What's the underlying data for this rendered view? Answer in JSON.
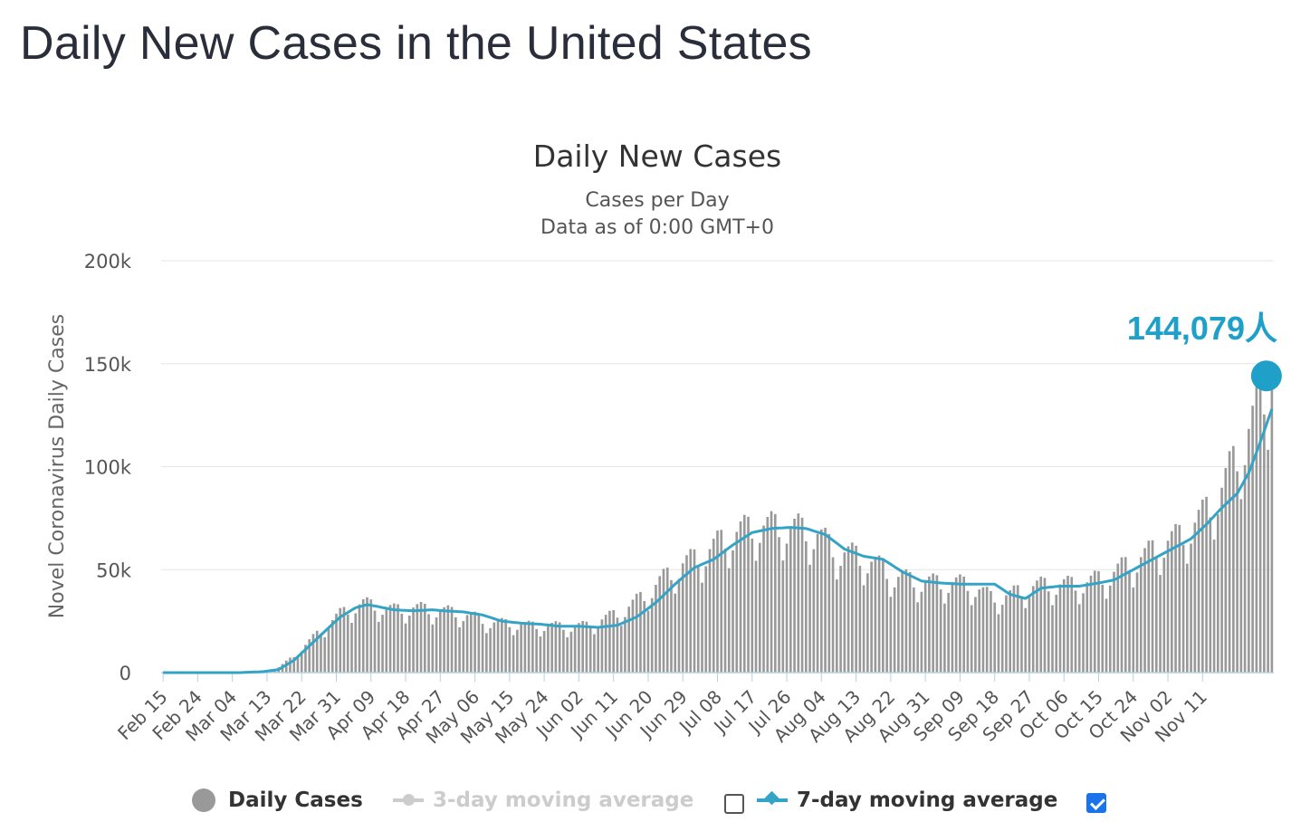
{
  "page": {
    "title": "Daily New Cases in the United States"
  },
  "legend": {
    "daily_cases": {
      "label": "Daily Cases",
      "color": "#999999"
    },
    "ma3": {
      "label": "3-day moving average",
      "color": "#cccccc",
      "checked": false
    },
    "ma7": {
      "label": "7-day moving average",
      "color": "#33a3c6",
      "checked": true
    }
  },
  "chart_data": {
    "type": "bar",
    "title": "Daily New Cases",
    "subtitle": [
      "Cases per Day",
      "Data as of 0:00 GMT+0"
    ],
    "ylabel": "Novel Coronavirus Daily Cases",
    "xlabel": "",
    "ylim": [
      0,
      200000
    ],
    "yticks": [
      0,
      50000,
      100000,
      150000,
      200000
    ],
    "ytick_labels": [
      "0",
      "50k",
      "100k",
      "150k",
      "200k"
    ],
    "start_date": "2020-02-15",
    "x_tick_labels": [
      "Feb 15",
      "Feb 24",
      "Mar 04",
      "Mar 13",
      "Mar 22",
      "Mar 31",
      "Apr 09",
      "Apr 18",
      "Apr 27",
      "May 06",
      "May 15",
      "May 24",
      "Jun 02",
      "Jun 11",
      "Jun 20",
      "Jun 29",
      "Jul 08",
      "Jul 17",
      "Jul 26",
      "Aug 04",
      "Aug 13",
      "Aug 22",
      "Aug 31",
      "Sep 09",
      "Sep 18",
      "Sep 27",
      "Oct 06",
      "Oct 15",
      "Oct 24",
      "Nov 02",
      "Nov 11"
    ],
    "grid": true,
    "legend_position": "bottom",
    "series": [
      {
        "name": "Daily Cases",
        "type": "bar",
        "color": "#999999",
        "anchors": [
          [
            0,
            0
          ],
          [
            20,
            0
          ],
          [
            26,
            600
          ],
          [
            30,
            2500
          ],
          [
            34,
            8000
          ],
          [
            38,
            15000
          ],
          [
            42,
            22000
          ],
          [
            46,
            28000
          ],
          [
            50,
            32000
          ],
          [
            52,
            33000
          ],
          [
            55,
            32000
          ],
          [
            60,
            30000
          ],
          [
            65,
            31000
          ],
          [
            70,
            30000
          ],
          [
            75,
            29000
          ],
          [
            80,
            27000
          ],
          [
            85,
            24000
          ],
          [
            90,
            23500
          ],
          [
            95,
            22500
          ],
          [
            100,
            22500
          ],
          [
            105,
            22000
          ],
          [
            110,
            22500
          ],
          [
            115,
            26000
          ],
          [
            120,
            30000
          ],
          [
            125,
            37000
          ],
          [
            130,
            45000
          ],
          [
            135,
            52000
          ],
          [
            140,
            56000
          ],
          [
            145,
            63000
          ],
          [
            150,
            68000
          ],
          [
            155,
            70000
          ],
          [
            160,
            70000
          ],
          [
            165,
            69000
          ],
          [
            170,
            66000
          ],
          [
            175,
            58000
          ],
          [
            180,
            56000
          ],
          [
            185,
            52000
          ],
          [
            190,
            46000
          ],
          [
            195,
            44000
          ],
          [
            200,
            43000
          ],
          [
            205,
            43000
          ],
          [
            210,
            42000
          ],
          [
            215,
            36000
          ],
          [
            220,
            37000
          ],
          [
            225,
            41000
          ],
          [
            230,
            42000
          ],
          [
            235,
            42000
          ],
          [
            240,
            43000
          ],
          [
            245,
            46000
          ],
          [
            250,
            51000
          ],
          [
            255,
            56000
          ],
          [
            260,
            62000
          ],
          [
            265,
            66000
          ],
          [
            270,
            75000
          ],
          [
            275,
            88000
          ],
          [
            280,
            108000
          ],
          [
            285,
            128000
          ],
          [
            288,
            144079
          ]
        ]
      },
      {
        "name": "7-day moving average",
        "type": "line",
        "color": "#33a3c6",
        "anchors": [
          [
            0,
            0
          ],
          [
            20,
            0
          ],
          [
            26,
            500
          ],
          [
            30,
            1500
          ],
          [
            34,
            6000
          ],
          [
            38,
            13000
          ],
          [
            42,
            20000
          ],
          [
            46,
            27000
          ],
          [
            50,
            31500
          ],
          [
            53,
            33000
          ],
          [
            56,
            32000
          ],
          [
            60,
            30500
          ],
          [
            65,
            30000
          ],
          [
            70,
            30500
          ],
          [
            73,
            30000
          ],
          [
            78,
            29500
          ],
          [
            83,
            28000
          ],
          [
            88,
            25000
          ],
          [
            93,
            24000
          ],
          [
            98,
            23500
          ],
          [
            103,
            22500
          ],
          [
            108,
            22500
          ],
          [
            113,
            22000
          ],
          [
            118,
            23000
          ],
          [
            123,
            27000
          ],
          [
            128,
            34000
          ],
          [
            133,
            43000
          ],
          [
            138,
            51000
          ],
          [
            143,
            55000
          ],
          [
            148,
            62000
          ],
          [
            153,
            68000
          ],
          [
            158,
            70000
          ],
          [
            163,
            70500
          ],
          [
            167,
            70000
          ],
          [
            172,
            67000
          ],
          [
            177,
            60000
          ],
          [
            182,
            56500
          ],
          [
            187,
            55000
          ],
          [
            192,
            49000
          ],
          [
            197,
            44500
          ],
          [
            202,
            43500
          ],
          [
            207,
            43000
          ],
          [
            212,
            43000
          ],
          [
            216,
            43000
          ],
          [
            220,
            38000
          ],
          [
            224,
            36000
          ],
          [
            228,
            41000
          ],
          [
            233,
            42000
          ],
          [
            238,
            42000
          ],
          [
            243,
            43500
          ],
          [
            247,
            45000
          ],
          [
            252,
            50000
          ],
          [
            257,
            55000
          ],
          [
            262,
            60000
          ],
          [
            267,
            65000
          ],
          [
            271,
            72000
          ],
          [
            275,
            80000
          ],
          [
            279,
            87000
          ],
          [
            282,
            97000
          ],
          [
            285,
            112000
          ],
          [
            288,
            128000
          ]
        ]
      }
    ],
    "highlight": {
      "value": 144079,
      "label": "144,079人",
      "color": "#1fa0c8"
    }
  }
}
